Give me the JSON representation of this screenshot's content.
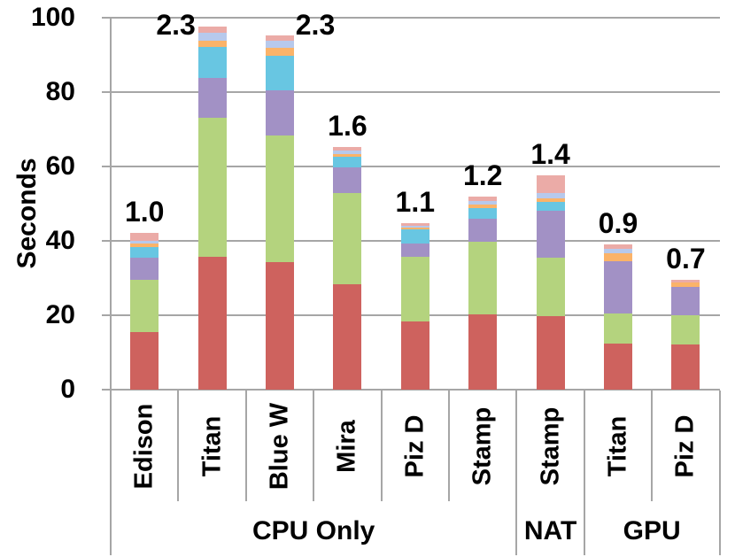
{
  "chart_data": {
    "type": "bar",
    "stacked": true,
    "title": "",
    "xlabel": "",
    "ylabel": "Seconds",
    "ylim": [
      0,
      100
    ],
    "yticks": [
      0,
      20,
      40,
      60,
      80,
      100
    ],
    "grid": true,
    "legend": "none",
    "categories": [
      "Edison",
      "Titan",
      "Blue W",
      "Mira",
      "Piz D",
      "Stamp",
      "Stamp",
      "Titan",
      "Piz D"
    ],
    "groups": [
      {
        "label": "CPU Only",
        "span": 6
      },
      {
        "label": "NAT",
        "span": 1
      },
      {
        "label": "GPU",
        "span": 2
      }
    ],
    "bar_total_labels": [
      "1.0",
      "2.3",
      "2.3",
      "1.6",
      "1.1",
      "1.2",
      "1.4",
      "0.9",
      "0.7"
    ],
    "series": [
      {
        "name": "red",
        "color": "#CE625E",
        "values": [
          15.5,
          35.7,
          34.3,
          28.3,
          18.3,
          20.2,
          19.8,
          12.4,
          12.1
        ]
      },
      {
        "name": "green",
        "color": "#B4D37E",
        "values": [
          14.0,
          37.4,
          34.0,
          24.5,
          17.4,
          19.5,
          15.7,
          8.1,
          7.9
        ]
      },
      {
        "name": "purple",
        "color": "#A291C5",
        "values": [
          6.0,
          10.7,
          12.2,
          6.9,
          3.6,
          6.2,
          12.6,
          14.0,
          7.7
        ]
      },
      {
        "name": "cyan",
        "color": "#68C6E2",
        "values": [
          2.8,
          8.3,
          9.3,
          2.9,
          3.8,
          2.9,
          2.4,
          0.0,
          0.0
        ]
      },
      {
        "name": "orange",
        "color": "#FBB369",
        "values": [
          1.0,
          1.7,
          2.1,
          0.7,
          0.5,
          1.0,
          1.0,
          2.1,
          1.2
        ]
      },
      {
        "name": "light-blue",
        "color": "#B7C9EC",
        "values": [
          0.8,
          2.1,
          1.9,
          1.0,
          0.5,
          1.0,
          1.4,
          1.2,
          0.0
        ]
      },
      {
        "name": "pink",
        "color": "#EBABA7",
        "values": [
          2.0,
          1.7,
          1.5,
          1.0,
          0.7,
          1.0,
          4.8,
          1.2,
          0.7
        ]
      }
    ],
    "value_label_overrides": {
      "1": {
        "dx": -41,
        "top": 10
      },
      "2": {
        "dx": 40,
        "top": 10
      }
    },
    "colors": {
      "gridline": "#A6A6A6",
      "axis": "#A6A6A6",
      "text": "#000000",
      "background": "#FFFFFF"
    }
  }
}
